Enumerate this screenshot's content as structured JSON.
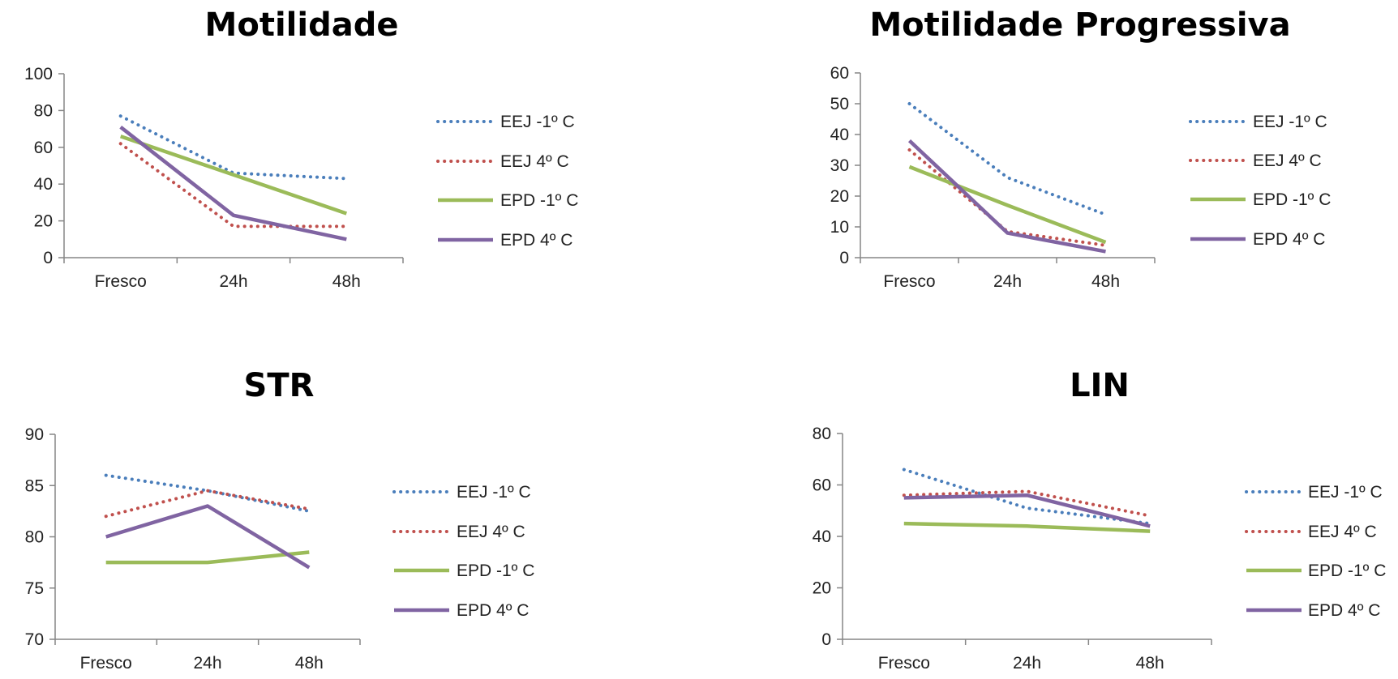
{
  "colors": {
    "eej_neg1": "#4a7ebb",
    "eej_4": "#c0504d",
    "epd_neg1": "#9bbb59",
    "epd_4": "#8064a2",
    "axis": "#868686"
  },
  "chart_data": [
    {
      "type": "line",
      "title": "Motilidade",
      "categories": [
        "Fresco",
        "24h",
        "48h"
      ],
      "ylim": [
        0,
        100
      ],
      "yticks": [
        "0",
        "20",
        "40",
        "60",
        "80",
        "100"
      ],
      "legend": "right",
      "series": [
        {
          "name": "EEJ -1º C",
          "style": "dotted",
          "color": "#4a7ebb",
          "values": [
            77,
            46,
            43
          ]
        },
        {
          "name": "EEJ 4º C",
          "style": "dotted",
          "color": "#c0504d",
          "values": [
            62,
            17,
            17
          ]
        },
        {
          "name": "EPD -1º C",
          "style": "solid",
          "color": "#9bbb59",
          "values": [
            66,
            45,
            24
          ]
        },
        {
          "name": "EPD 4º C",
          "style": "solid",
          "color": "#8064a2",
          "values": [
            71,
            23,
            10
          ]
        }
      ]
    },
    {
      "type": "line",
      "title": "Motilidade Progressiva",
      "categories": [
        "Fresco",
        "24h",
        "48h"
      ],
      "ylim": [
        0,
        60
      ],
      "yticks": [
        "0",
        "10",
        "20",
        "30",
        "40",
        "50",
        "60"
      ],
      "legend": "right",
      "series": [
        {
          "name": "EEJ -1º C",
          "style": "dotted",
          "color": "#4a7ebb",
          "values": [
            50,
            26,
            14
          ]
        },
        {
          "name": "EEJ 4º C",
          "style": "dotted",
          "color": "#c0504d",
          "values": [
            35,
            8.5,
            4
          ]
        },
        {
          "name": "EPD -1º C",
          "style": "solid",
          "color": "#9bbb59",
          "values": [
            29.5,
            17,
            5
          ]
        },
        {
          "name": "EPD 4º C",
          "style": "solid",
          "color": "#8064a2",
          "values": [
            38,
            8,
            2
          ]
        }
      ]
    },
    {
      "type": "line",
      "title": "STR",
      "categories": [
        "Fresco",
        "24h",
        "48h"
      ],
      "ylim": [
        70,
        90
      ],
      "yticks": [
        "70",
        "75",
        "80",
        "85",
        "90"
      ],
      "legend": "right",
      "series": [
        {
          "name": "EEJ -1º C",
          "style": "dotted",
          "color": "#4a7ebb",
          "values": [
            86,
            84.5,
            82.5
          ]
        },
        {
          "name": "EEJ 4º C",
          "style": "dotted",
          "color": "#c0504d",
          "values": [
            82,
            84.5,
            82.7
          ]
        },
        {
          "name": "EPD -1º C",
          "style": "solid",
          "color": "#9bbb59",
          "values": [
            77.5,
            77.5,
            78.5
          ]
        },
        {
          "name": "EPD 4º C",
          "style": "solid",
          "color": "#8064a2",
          "values": [
            80,
            83,
            77
          ]
        }
      ]
    },
    {
      "type": "line",
      "title": "LIN",
      "categories": [
        "Fresco",
        "24h",
        "48h"
      ],
      "ylim": [
        0,
        80
      ],
      "yticks": [
        "0",
        "20",
        "40",
        "60",
        "80"
      ],
      "legend": "right",
      "series": [
        {
          "name": "EEJ -1º C",
          "style": "dotted",
          "color": "#4a7ebb",
          "values": [
            66,
            51,
            45
          ]
        },
        {
          "name": "EEJ 4º C",
          "style": "dotted",
          "color": "#c0504d",
          "values": [
            56,
            57.5,
            48
          ]
        },
        {
          "name": "EPD -1º C",
          "style": "solid",
          "color": "#9bbb59",
          "values": [
            45,
            44,
            42
          ]
        },
        {
          "name": "EPD 4º C",
          "style": "solid",
          "color": "#8064a2",
          "values": [
            55,
            56,
            44
          ]
        }
      ]
    }
  ]
}
